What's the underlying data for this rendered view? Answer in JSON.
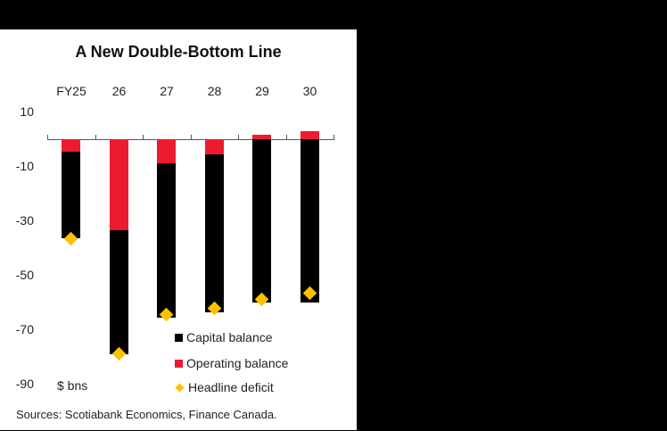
{
  "chart_data": {
    "type": "bar",
    "stacked": true,
    "title": "A New Double-Bottom Line",
    "categories": [
      "FY25",
      "26",
      "27",
      "28",
      "29",
      "30"
    ],
    "series": [
      {
        "name": "Capital balance",
        "type": "bar",
        "color": "#000000",
        "values": [
          -32,
          -45.5,
          -56.5,
          -58,
          -60,
          -60
        ]
      },
      {
        "name": "Operating balance",
        "type": "bar",
        "color": "#ED1B2F",
        "values": [
          -4.5,
          -33.5,
          -9,
          -5.5,
          1.5,
          3
        ]
      },
      {
        "name": "Headline deficit",
        "type": "scatter",
        "marker": "diamond",
        "color": "#FFC000",
        "values": [
          -36.5,
          -79,
          -64.5,
          -62,
          -59,
          -56.5
        ]
      }
    ],
    "xlabel": "",
    "ylabel": "$ bns",
    "ylim": [
      -90,
      10
    ],
    "yticks": [
      10,
      -10,
      -30,
      -50,
      -70,
      -90
    ],
    "xaxis_position": "top (at zero)",
    "grid": false,
    "legend_position": "lower right inside plot",
    "source": "Sources: Scotiabank Economics, Finance Canada."
  },
  "title": "A New Double-Bottom Line",
  "x_labels": [
    "FY25",
    "26",
    "27",
    "28",
    "29",
    "30"
  ],
  "y_ticks": [
    "10",
    "-10",
    "-30",
    "-50",
    "-70",
    "-90"
  ],
  "unit_label": "$ bns",
  "legend": {
    "capital": "Capital balance",
    "operating": "Operating balance",
    "headline": "Headline deficit"
  },
  "colors": {
    "capital": "#000000",
    "operating": "#ED1B2F",
    "headline": "#FFC000"
  },
  "source": "Sources: Scotiabank Economics, Finance Canada."
}
